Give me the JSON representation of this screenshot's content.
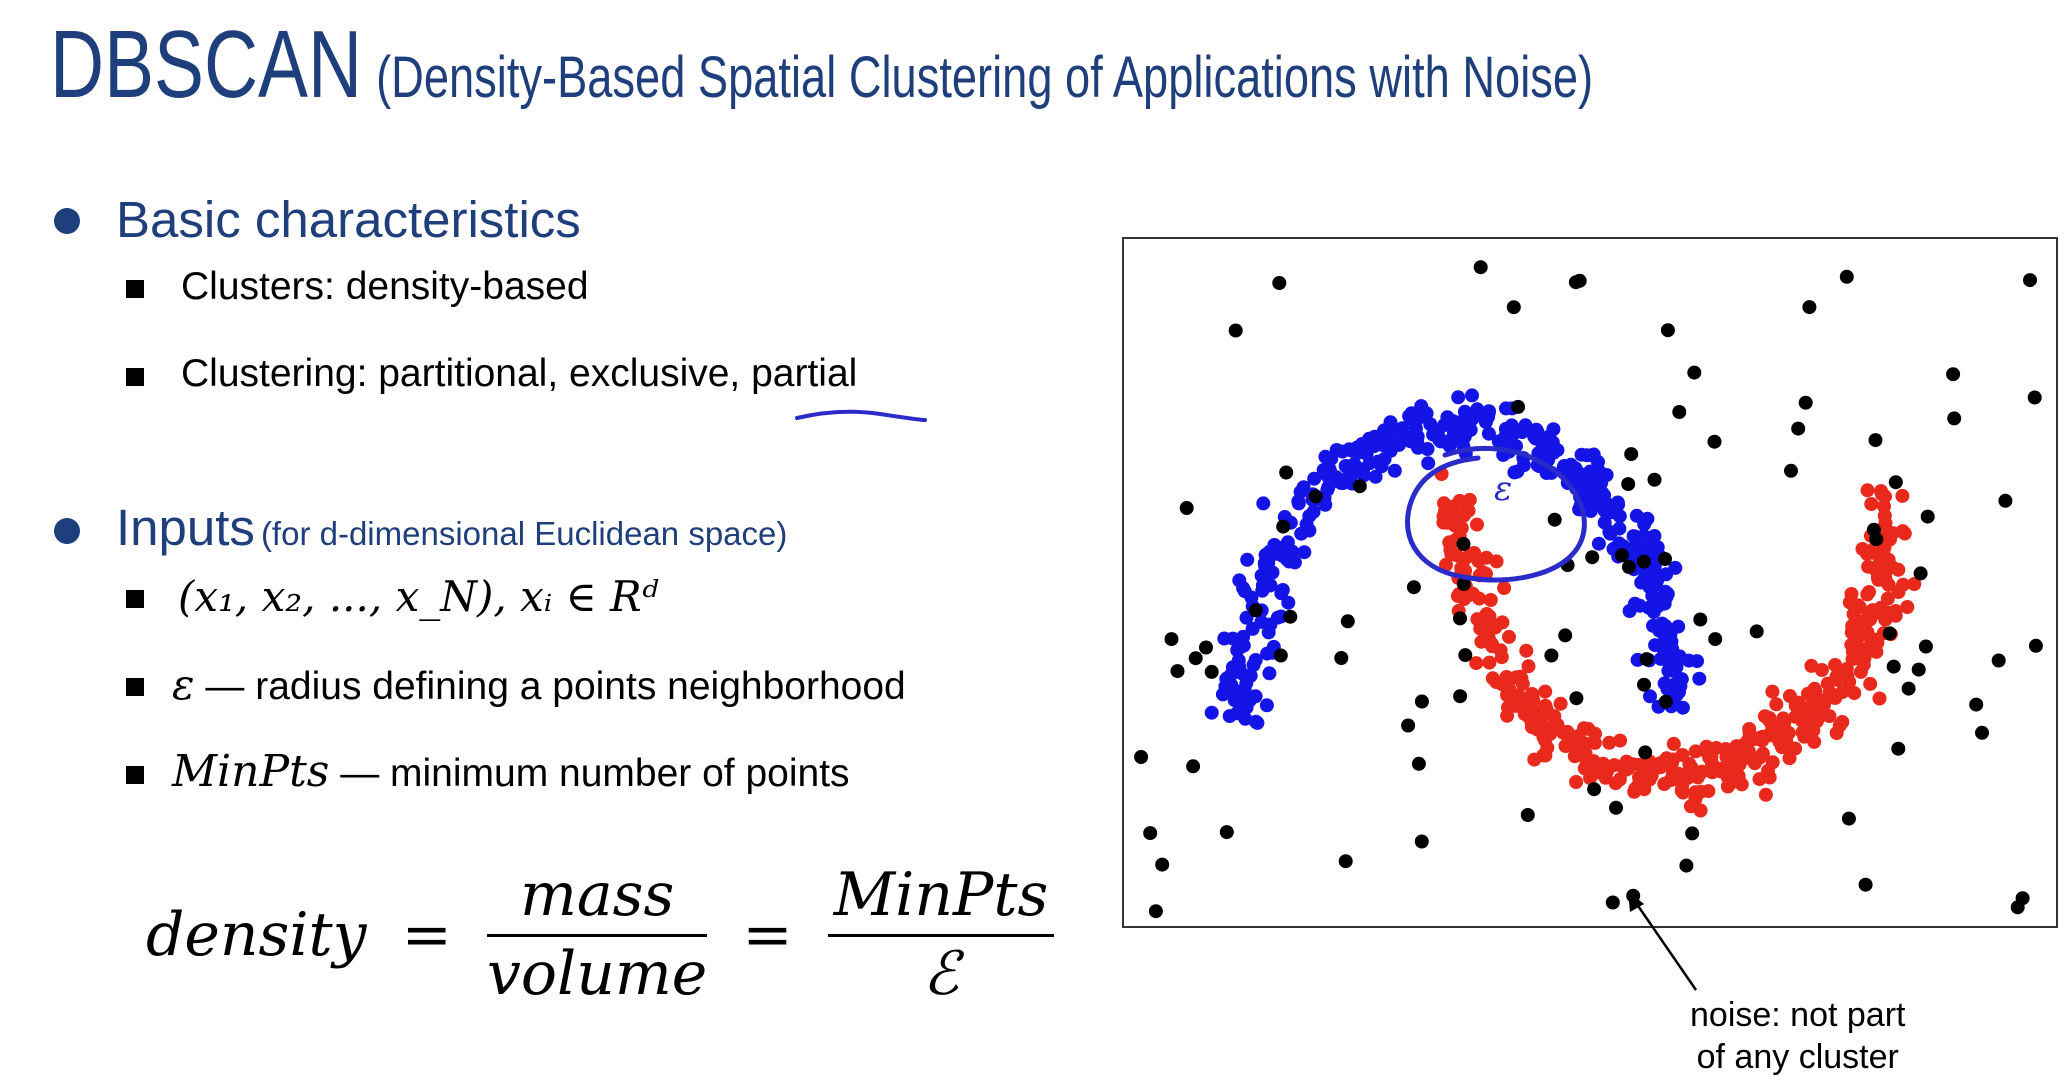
{
  "title": {
    "main": "DBSCAN",
    "sub": "(Density-Based Spatial Clustering of Applications with Noise)"
  },
  "sections": {
    "basic": {
      "heading": "Basic characteristics",
      "items": [
        "Clusters: density-based",
        "Clustering: partitional, exclusive, partial"
      ]
    },
    "inputs": {
      "heading": "Inputs",
      "note": "(for d-dimensional Euclidean space)",
      "data_math": "(x₁, x₂, ..., x_N),  xᵢ ∈ Rᵈ",
      "epsilon_symbol": "ε",
      "epsilon_text": "— radius defining a points neighborhood",
      "minpts_symbol": "MinPts",
      "minpts_text": "— minimum number of points"
    }
  },
  "formula": {
    "lhs": "density",
    "eq": "=",
    "num1": "mass",
    "den1": "volume",
    "num2": "MinPts",
    "den2": "ℰ"
  },
  "annotation": {
    "epsilon_mark": "ε",
    "noise_label_line1": "noise: not part",
    "noise_label_line2": "of any cluster"
  },
  "colors": {
    "title": "#1f3f7c",
    "cluster_blue": "#1414e6",
    "cluster_red": "#e8291c",
    "noise": "#000000",
    "ink": "#2b2bc9"
  },
  "chart_data": {
    "type": "scatter",
    "title": "",
    "xlabel": "",
    "ylabel": "",
    "grid": false,
    "series": [
      {
        "color": "#1414e6",
        "count": 420,
        "shape": "upper crescent (half-moon)"
      },
      {
        "color": "#e8291c",
        "count": 420,
        "shape": "lower crescent (half-moon)"
      },
      {
        "color": "#000000",
        "count": 100,
        "shape": "scattered noise points"
      }
    ]
  }
}
